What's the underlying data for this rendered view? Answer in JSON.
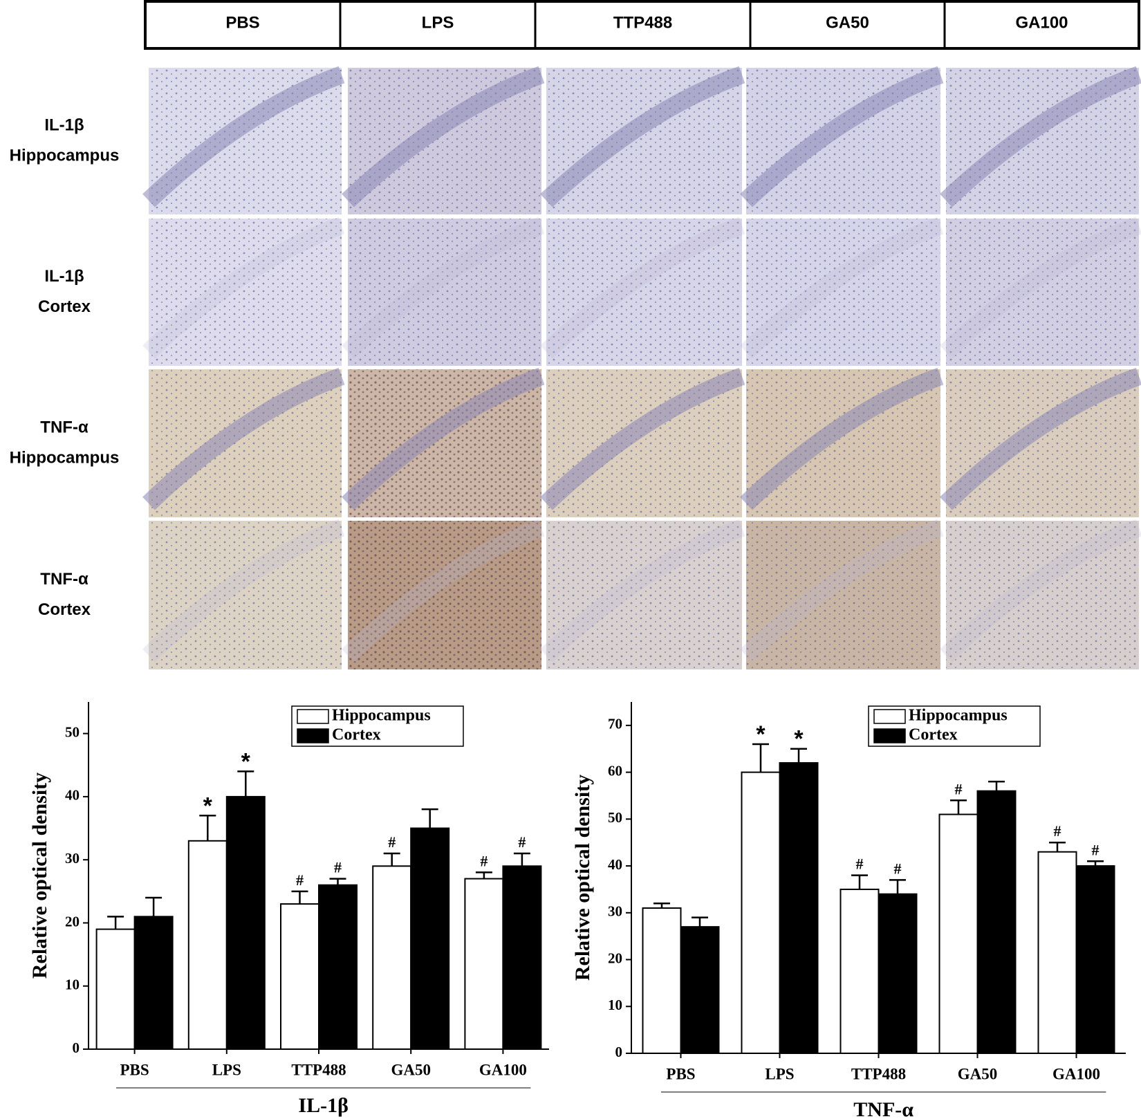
{
  "figure": {
    "columns": [
      "PBS",
      "LPS",
      "TTP488",
      "GA50",
      "GA100"
    ],
    "rows": [
      [
        "IL-1β",
        "Hippocampus"
      ],
      [
        "IL-1β",
        "Cortex"
      ],
      [
        "TNF-α",
        "Hippocampus"
      ],
      [
        "TNF-α",
        "Cortex"
      ]
    ]
  },
  "chart_data": [
    {
      "type": "bar",
      "x_label": "IL-1β",
      "y_label": "Relative optical density",
      "categories": [
        "PBS",
        "LPS",
        "TTP488",
        "GA50",
        "GA100"
      ],
      "series": [
        {
          "name": "Hippocampus",
          "color": "#ffffff",
          "values": [
            19,
            33,
            23,
            29,
            27
          ],
          "errors": [
            2,
            4,
            2,
            2,
            1
          ],
          "markers": [
            null,
            "*",
            "#",
            "#",
            "#"
          ]
        },
        {
          "name": "Cortex",
          "color": "#000000",
          "values": [
            21,
            40,
            26,
            35,
            29
          ],
          "errors": [
            3,
            4,
            1,
            3,
            2
          ],
          "markers": [
            null,
            "*",
            "#",
            null,
            "#"
          ]
        }
      ],
      "ylim": [
        0,
        55
      ],
      "yticks": [
        0,
        10,
        20,
        30,
        40,
        50
      ],
      "legend": "upper right"
    },
    {
      "type": "bar",
      "x_label": "TNF-α",
      "y_label": "Relative optical density",
      "categories": [
        "PBS",
        "LPS",
        "TTP488",
        "GA50",
        "GA100"
      ],
      "series": [
        {
          "name": "Hippocampus",
          "color": "#ffffff",
          "values": [
            31,
            60,
            35,
            51,
            43
          ],
          "errors": [
            1,
            6,
            3,
            3,
            2
          ],
          "markers": [
            null,
            "*",
            "#",
            "#",
            "#"
          ]
        },
        {
          "name": "Cortex",
          "color": "#000000",
          "values": [
            27,
            62,
            34,
            56,
            40
          ],
          "errors": [
            2,
            3,
            3,
            2,
            1
          ],
          "markers": [
            null,
            "*",
            "#",
            null,
            "#"
          ]
        }
      ],
      "ylim": [
        0,
        75
      ],
      "yticks": [
        0,
        10,
        20,
        30,
        40,
        50,
        60,
        70
      ],
      "legend": "upper right"
    }
  ]
}
